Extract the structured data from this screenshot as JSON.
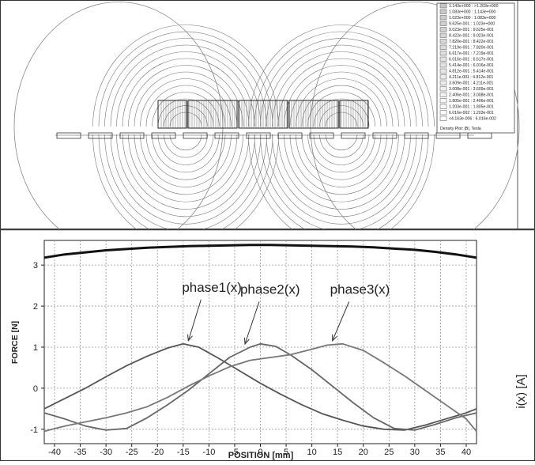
{
  "fem": {
    "legend_entries": [
      "1.143e+000 : >1.203e+000",
      "1.083e+000 : 1.143e+000",
      "1.023e+000 : 1.083e+000",
      "9.625e-001 : 1.023e+000",
      "9.023e-001 : 9.625e-001",
      "8.422e-001 : 9.023e-001",
      "7.820e-001 : 8.422e-001",
      "7.219e-001 : 7.820e-001",
      "6.617e-001 : 7.219e-001",
      "6.016e-001 : 6.617e-001",
      "5.414e-001 : 6.016e-001",
      "4.812e-001 : 5.414e-001",
      "4.211e-001 : 4.812e-001",
      "3.609e-001 : 4.211e-001",
      "3.008e-001 : 3.609e-001",
      "2.406e-001 : 3.008e-001",
      "1.805e-001 : 2.406e-001",
      "1.203e-001 : 1.805e-001",
      "6.016e-002 : 1.203e-001",
      "<4.163e-006 : 6.016e-002"
    ],
    "legend_footer": "Density Plot: |B|, Tesla"
  },
  "chart_data": {
    "type": "line",
    "title": "",
    "xlabel": "POSITION [mm]",
    "ylabel": "FORCE [N]",
    "ylabel_right": "i(x) [A]",
    "xlim": [
      -42,
      42
    ],
    "ylim": [
      -1.35,
      3.6
    ],
    "xticks": [
      -40,
      -35,
      -30,
      -25,
      -20,
      -15,
      -10,
      -5,
      0,
      5,
      10,
      15,
      20,
      25,
      30,
      35,
      40
    ],
    "yticks": [
      -1,
      0,
      1,
      2,
      3
    ],
    "grid": true,
    "series": [
      {
        "name": "",
        "color": "#111111",
        "x": [
          -42,
          -38,
          -34,
          -30,
          -26,
          -22,
          -18,
          -14,
          -10,
          -6,
          -2,
          2,
          6,
          10,
          14,
          18,
          22,
          26,
          30,
          34,
          38,
          42
        ],
        "y": [
          3.18,
          3.26,
          3.31,
          3.36,
          3.39,
          3.42,
          3.44,
          3.46,
          3.47,
          3.48,
          3.49,
          3.49,
          3.48,
          3.47,
          3.46,
          3.45,
          3.43,
          3.4,
          3.37,
          3.32,
          3.26,
          3.18
        ]
      },
      {
        "name": "phase1(x)",
        "color": "#555555",
        "x": [
          -42,
          -38,
          -34,
          -30,
          -26,
          -22,
          -18,
          -15,
          -12,
          -8,
          -4,
          0,
          4,
          8,
          12,
          16,
          20,
          24,
          28,
          32,
          36,
          40,
          42
        ],
        "y": [
          -0.5,
          -0.25,
          0.0,
          0.28,
          0.55,
          0.78,
          0.98,
          1.08,
          1.0,
          0.72,
          0.42,
          0.12,
          -0.15,
          -0.4,
          -0.62,
          -0.78,
          -0.92,
          -1.0,
          -1.02,
          -0.9,
          -0.75,
          -0.6,
          -0.5
        ]
      },
      {
        "name": "phase2(x)",
        "color": "#666666",
        "x": [
          -42,
          -38,
          -34,
          -30,
          -26,
          -22,
          -18,
          -14,
          -10,
          -6,
          -2,
          0,
          3,
          6,
          10,
          14,
          18,
          22,
          26,
          30,
          34,
          38,
          42
        ],
        "y": [
          -0.6,
          -0.75,
          -0.92,
          -1.02,
          -0.98,
          -0.72,
          -0.4,
          -0.05,
          0.35,
          0.75,
          1.0,
          1.08,
          1.02,
          0.8,
          0.45,
          0.05,
          -0.35,
          -0.72,
          -0.98,
          -1.02,
          -0.88,
          -0.72,
          -0.6
        ]
      },
      {
        "name": "phase3(x)",
        "color": "#777777",
        "x": [
          -42,
          -38,
          -34,
          -30,
          -26,
          -22,
          -18,
          -14,
          -10,
          -6,
          -2,
          2,
          6,
          10,
          13,
          16,
          20,
          24,
          28,
          32,
          36,
          40,
          42
        ],
        "y": [
          -1.05,
          -0.92,
          -0.82,
          -0.72,
          -0.6,
          -0.45,
          -0.22,
          0.05,
          0.3,
          0.52,
          0.68,
          0.75,
          0.82,
          0.95,
          1.05,
          1.08,
          0.92,
          0.62,
          0.3,
          -0.05,
          -0.4,
          -0.75,
          -1.05
        ]
      }
    ],
    "annotations": [
      {
        "text": "phase1(x)",
        "x": -14,
        "y": 1.08
      },
      {
        "text": "phase2(x)",
        "x": -3,
        "y": 1.0
      },
      {
        "text": "phase3(x)",
        "x": 14,
        "y": 1.08
      }
    ]
  }
}
